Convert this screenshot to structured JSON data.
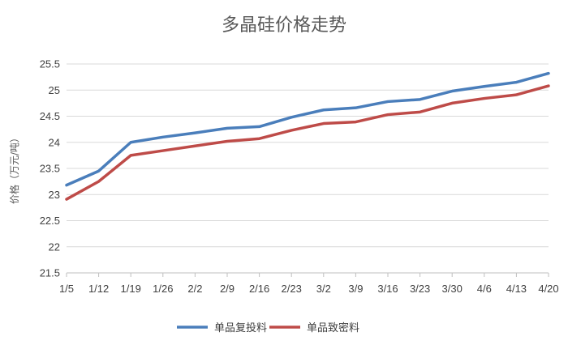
{
  "chart_data": {
    "type": "line",
    "title": "多晶硅价格走势",
    "ylabel": "价格（万元/吨）",
    "xlabel": "",
    "categories": [
      "1/5",
      "1/12",
      "1/19",
      "1/26",
      "2/2",
      "2/9",
      "2/16",
      "2/23",
      "3/2",
      "3/9",
      "3/16",
      "3/23",
      "3/30",
      "4/6",
      "4/13",
      "4/20"
    ],
    "ylim": [
      21.5,
      25.5
    ],
    "yticks": [
      "21.5",
      "22",
      "22.5",
      "23",
      "23.5",
      "24",
      "24.5",
      "25",
      "25.5"
    ],
    "grid": true,
    "legend_position": "bottom",
    "series": [
      {
        "name": "单品复投料",
        "color": "#4a7ebb",
        "values": [
          23.18,
          23.45,
          24.0,
          24.1,
          24.18,
          24.27,
          24.3,
          24.48,
          24.62,
          24.66,
          24.78,
          24.82,
          24.98,
          25.07,
          25.15,
          25.32
        ]
      },
      {
        "name": "单品致密料",
        "color": "#be4b48",
        "values": [
          22.91,
          23.25,
          23.75,
          23.84,
          23.93,
          24.02,
          24.07,
          24.23,
          24.36,
          24.39,
          24.53,
          24.58,
          24.75,
          24.84,
          24.91,
          25.08
        ]
      }
    ]
  }
}
